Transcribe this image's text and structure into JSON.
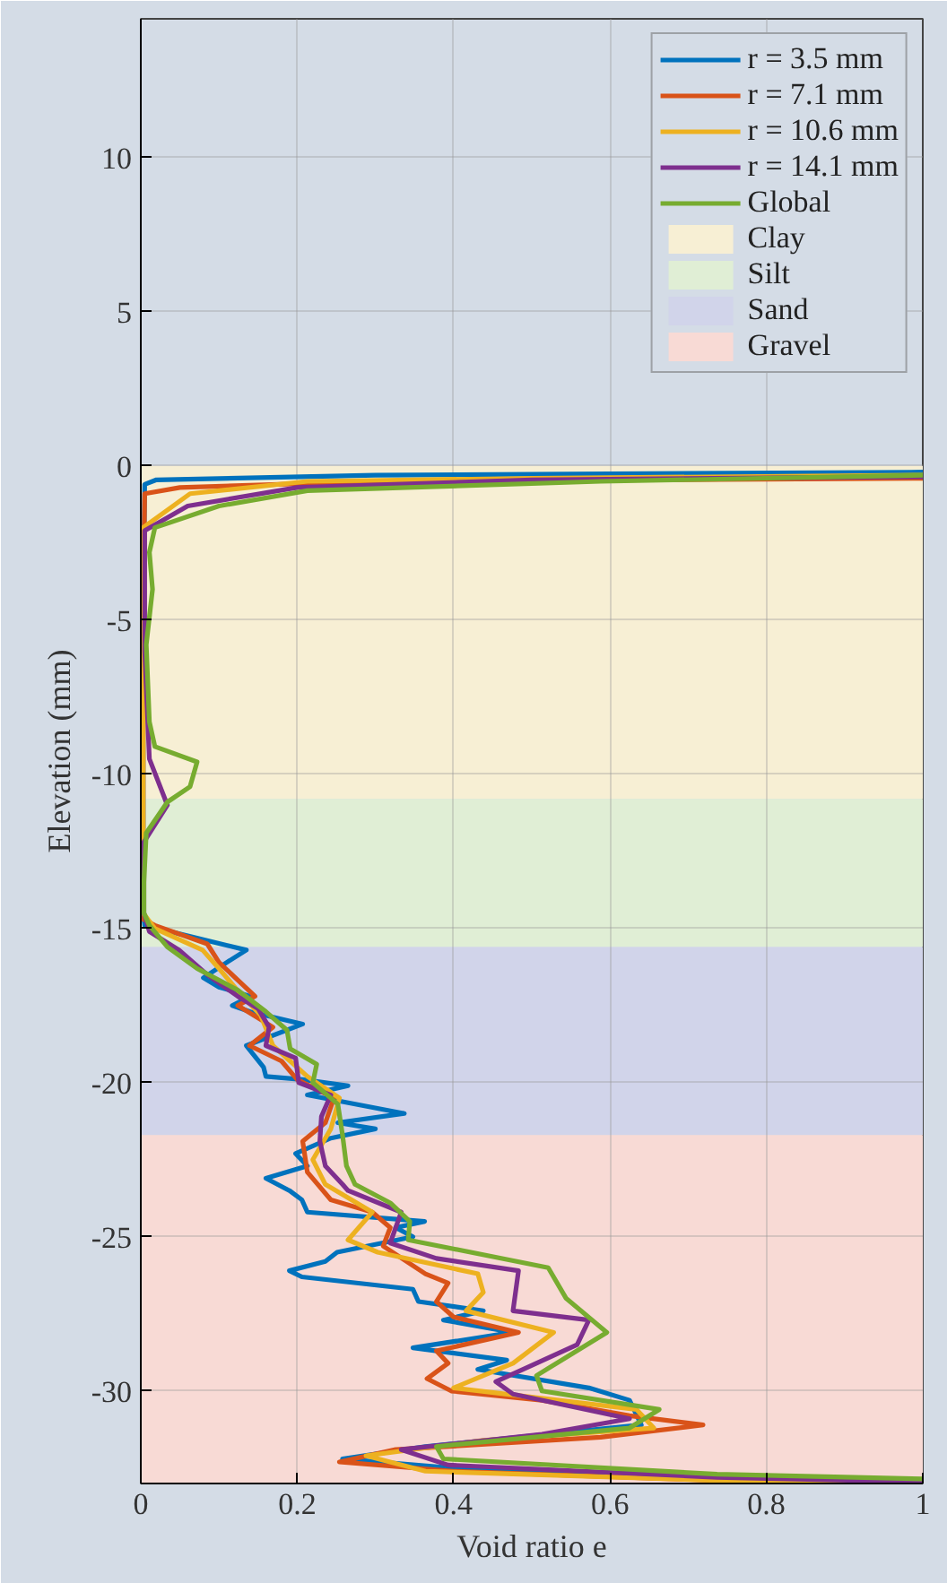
{
  "chart_data": {
    "type": "line",
    "xlabel": "Void ratio e",
    "ylabel": "Elevation (mm)",
    "xlim": [
      0,
      1
    ],
    "ylim": [
      -33,
      14.5
    ],
    "xticks": [
      0,
      0.2,
      0.4,
      0.6,
      0.8,
      1
    ],
    "yticks": [
      -30,
      -25,
      -20,
      -15,
      -10,
      -5,
      0,
      5,
      10
    ],
    "grid": true,
    "legend": "top right",
    "bands": [
      {
        "axis": "y",
        "from": 0,
        "to": -10.8,
        "label": "Clay",
        "color": "#f7efd4"
      },
      {
        "axis": "y",
        "from": -10.8,
        "to": -15.6,
        "label": "Silt",
        "color": "#e0eed5"
      },
      {
        "axis": "y",
        "from": -15.6,
        "to": -21.7,
        "label": "Sand",
        "color": "#d1d4ea"
      },
      {
        "axis": "y",
        "from": -21.7,
        "to": -33,
        "label": "Gravel",
        "color": "#f8dad5"
      }
    ],
    "series": [
      {
        "name": "r = 3.5 mm",
        "color": "#0072bd",
        "x": [
          1.0,
          0.3,
          0.02,
          0.005,
          0.003,
          0.003,
          0.003,
          0.005,
          0.135,
          0.11,
          0.08,
          0.1,
          0.14,
          0.117,
          0.14,
          0.207,
          0.135,
          0.157,
          0.16,
          0.207,
          0.265,
          0.213,
          0.337,
          0.252,
          0.3,
          0.243,
          0.198,
          0.213,
          0.16,
          0.19,
          0.206,
          0.213,
          0.363,
          0.326,
          0.348,
          0.251,
          0.236,
          0.19,
          0.206,
          0.348,
          0.355,
          0.438,
          0.387,
          0.476,
          0.348,
          0.468,
          0.431,
          0.573,
          0.625,
          0.64,
          0.364,
          0.258,
          0.4,
          0.663,
          0.995
        ],
        "values": [
          -0.2,
          -0.3,
          -0.45,
          -0.6,
          -5,
          -10,
          -14.5,
          -14.9,
          -15.7,
          -16.1,
          -16.6,
          -16.9,
          -17.2,
          -17.5,
          -17.7,
          -18.1,
          -18.8,
          -19.5,
          -19.8,
          -19.9,
          -20.1,
          -20.4,
          -21.0,
          -21.3,
          -21.5,
          -21.8,
          -22.3,
          -22.7,
          -23.1,
          -23.5,
          -23.8,
          -24.2,
          -24.5,
          -24.7,
          -25.0,
          -25.5,
          -25.8,
          -26.1,
          -26.3,
          -26.7,
          -27.1,
          -27.4,
          -27.7,
          -28.1,
          -28.6,
          -29.0,
          -29.3,
          -29.9,
          -30.3,
          -31.1,
          -31.8,
          -32.2,
          -32.5,
          -32.7,
          -32.9
        ]
      },
      {
        "name": "r = 7.1 mm",
        "color": "#d95319",
        "x": [
          1.0,
          0.3,
          0.05,
          0.005,
          0.003,
          0.003,
          0.003,
          0.018,
          0.085,
          0.1,
          0.146,
          0.124,
          0.169,
          0.139,
          0.18,
          0.2,
          0.247,
          0.236,
          0.207,
          0.213,
          0.243,
          0.296,
          0.319,
          0.31,
          0.364,
          0.393,
          0.378,
          0.4,
          0.483,
          0.378,
          0.393,
          0.366,
          0.397,
          0.513,
          0.625,
          0.719,
          0.588,
          0.326,
          0.254,
          0.4,
          0.737,
          1.0
        ],
        "values": [
          -0.4,
          -0.5,
          -0.7,
          -0.9,
          -5,
          -10,
          -14.7,
          -14.9,
          -15.5,
          -16.1,
          -17.2,
          -17.5,
          -18.2,
          -18.8,
          -19.3,
          -19.9,
          -20.5,
          -21.3,
          -21.9,
          -22.9,
          -23.8,
          -24.2,
          -24.7,
          -25.3,
          -26.2,
          -26.5,
          -27.1,
          -27.6,
          -28.1,
          -28.7,
          -29.1,
          -29.6,
          -30.0,
          -30.3,
          -30.8,
          -31.1,
          -31.5,
          -31.9,
          -32.3,
          -32.6,
          -32.9,
          -33.0
        ]
      },
      {
        "name": "r = 10.6 mm",
        "color": "#edb120",
        "x": [
          1.0,
          0.5,
          0.213,
          0.063,
          0.003,
          0.003,
          0.003,
          0.003,
          0.018,
          0.079,
          0.1,
          0.13,
          0.153,
          0.169,
          0.191,
          0.213,
          0.254,
          0.243,
          0.22,
          0.236,
          0.296,
          0.265,
          0.303,
          0.431,
          0.438,
          0.416,
          0.528,
          0.476,
          0.4,
          0.634,
          0.656,
          0.438,
          0.288,
          0.364,
          0.737,
          1.0
        ],
        "values": [
          -0.3,
          -0.4,
          -0.5,
          -0.9,
          -2.0,
          -5,
          -10,
          -14.5,
          -15.0,
          -15.7,
          -16.3,
          -17.2,
          -17.8,
          -18.8,
          -19.3,
          -19.8,
          -20.5,
          -21.5,
          -22.5,
          -23.3,
          -24.2,
          -25.1,
          -25.5,
          -26.2,
          -26.8,
          -27.4,
          -28.1,
          -29.1,
          -29.9,
          -30.6,
          -31.2,
          -31.6,
          -32.1,
          -32.6,
          -32.9,
          -33.0
        ]
      },
      {
        "name": "r = 14.1 mm",
        "color": "#7e2f8e",
        "x": [
          1.0,
          0.5,
          0.2,
          0.06,
          0.005,
          0.005,
          0.011,
          0.034,
          0.004,
          0.004,
          0.011,
          0.049,
          0.085,
          0.124,
          0.15,
          0.164,
          0.16,
          0.198,
          0.202,
          0.243,
          0.231,
          0.229,
          0.236,
          0.258,
          0.265,
          0.333,
          0.319,
          0.378,
          0.483,
          0.476,
          0.573,
          0.558,
          0.454,
          0.476,
          0.625,
          0.513,
          0.333,
          0.393,
          0.737,
          1.0
        ],
        "values": [
          -0.35,
          -0.45,
          -0.7,
          -1.3,
          -2.1,
          -6,
          -9.5,
          -11.0,
          -12.2,
          -14.5,
          -15.1,
          -15.7,
          -16.5,
          -17.2,
          -17.6,
          -18.2,
          -18.8,
          -19.2,
          -20.0,
          -20.4,
          -21.1,
          -21.9,
          -22.7,
          -23.3,
          -23.5,
          -24.2,
          -25.2,
          -25.7,
          -26.1,
          -27.4,
          -27.7,
          -28.5,
          -29.7,
          -30.1,
          -30.9,
          -31.4,
          -31.9,
          -32.4,
          -32.8,
          -32.95
        ]
      },
      {
        "name": "Global",
        "color": "#77ac30",
        "x": [
          1.0,
          0.588,
          0.213,
          0.1,
          0.018,
          0.011,
          0.015,
          0.007,
          0.011,
          0.018,
          0.072,
          0.063,
          0.034,
          0.007,
          0.004,
          0.004,
          0.011,
          0.034,
          0.072,
          0.124,
          0.16,
          0.187,
          0.191,
          0.225,
          0.22,
          0.252,
          0.258,
          0.263,
          0.274,
          0.319,
          0.344,
          0.342,
          0.521,
          0.544,
          0.596,
          0.506,
          0.513,
          0.663,
          0.625,
          0.378,
          0.387,
          0.737,
          1.0
        ],
        "values": [
          -0.3,
          -0.5,
          -0.8,
          -1.3,
          -2.0,
          -2.8,
          -4.0,
          -5.8,
          -8.3,
          -9.1,
          -9.6,
          -10.4,
          -10.9,
          -11.9,
          -13.5,
          -14.5,
          -14.9,
          -15.6,
          -16.3,
          -17.0,
          -17.7,
          -18.3,
          -18.9,
          -19.4,
          -20.0,
          -20.7,
          -21.7,
          -22.7,
          -23.3,
          -23.9,
          -24.5,
          -25.1,
          -26.0,
          -27.0,
          -28.1,
          -29.5,
          -30.0,
          -30.6,
          -31.2,
          -31.8,
          -32.2,
          -32.7,
          -32.85
        ]
      }
    ]
  }
}
